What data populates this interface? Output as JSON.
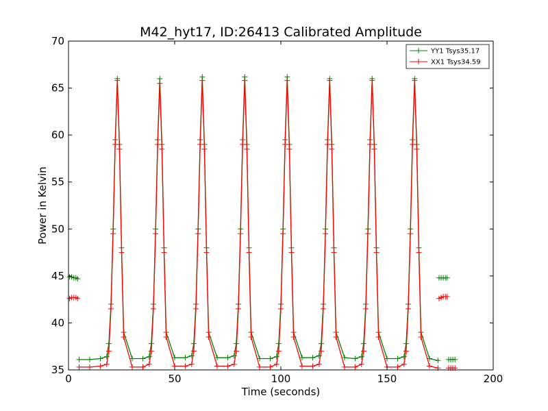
{
  "chart_data": {
    "type": "line",
    "title": "M42_hyt17, ID:26413 Calibrated Amplitude",
    "xlabel": "Time (seconds)",
    "ylabel": "Power in Kelvin",
    "xlim": [
      0,
      200
    ],
    "ylim": [
      35,
      70
    ],
    "xticks": [
      "0",
      "50",
      "100",
      "150",
      "200"
    ],
    "yticks": [
      "35",
      "40",
      "45",
      "50",
      "55",
      "60",
      "65",
      "70"
    ],
    "grid": false,
    "legend_position": "top-right",
    "marker": "plus",
    "series": [
      {
        "name": "YY1 Tsys35.17",
        "color": "#008000",
        "segments": [
          {
            "x": [
              0.5,
              1.5,
              2.5,
              3.5,
              4.3
            ],
            "y": [
              44.9,
              44.9,
              44.8,
              44.8,
              44.7
            ]
          },
          {
            "x": [
              5,
              10,
              15,
              18,
              19,
              20,
              21,
              22,
              23,
              24,
              25,
              26,
              30,
              35,
              38,
              39,
              40,
              41,
              42,
              43,
              44,
              45,
              46,
              50,
              55,
              58,
              59,
              60,
              61,
              62,
              63,
              64,
              65,
              66,
              70,
              75,
              78,
              79,
              80,
              81,
              82,
              83,
              84,
              85,
              86,
              90,
              95,
              98,
              99,
              100,
              101,
              102,
              103,
              104,
              105,
              106,
              110,
              115,
              118,
              119,
              120,
              121,
              122,
              123,
              124,
              125,
              126,
              130,
              135,
              138,
              139,
              140,
              141,
              142,
              143,
              144,
              145,
              146,
              150,
              155,
              158,
              159,
              160,
              161,
              162,
              163,
              164,
              165,
              166,
              170,
              174
            ],
            "y": [
              36.1,
              36.1,
              36.2,
              36.4,
              37.8,
              42.0,
              50.0,
              59.5,
              66.0,
              59.0,
              48.0,
              39.0,
              36.2,
              36.2,
              36.4,
              37.8,
              42.0,
              50.0,
              59.5,
              66.0,
              59.0,
              48.0,
              39.0,
              36.3,
              36.3,
              36.5,
              37.8,
              42.0,
              50.0,
              59.5,
              66.2,
              59.0,
              48.0,
              39.0,
              36.3,
              36.3,
              36.5,
              37.8,
              42.0,
              50.0,
              59.5,
              66.2,
              59.0,
              48.0,
              39.0,
              36.2,
              36.2,
              36.4,
              37.8,
              42.0,
              50.0,
              59.5,
              66.2,
              59.0,
              48.0,
              39.0,
              36.3,
              36.3,
              36.5,
              37.8,
              42.0,
              50.0,
              59.5,
              66.0,
              59.0,
              48.0,
              39.0,
              36.3,
              36.2,
              36.4,
              37.8,
              42.0,
              50.0,
              59.5,
              66.0,
              59.0,
              48.0,
              39.0,
              36.2,
              36.2,
              36.4,
              37.8,
              42.0,
              50.0,
              59.5,
              66.0,
              59.0,
              48.0,
              39.0,
              36.2,
              36.0
            ]
          },
          {
            "x": [
              174.5,
              175.5,
              176.5,
              177.5,
              178.3
            ],
            "y": [
              44.8,
              44.8,
              44.8,
              44.8,
              44.8
            ]
          },
          {
            "x": [
              179,
              180,
              181,
              182
            ],
            "y": [
              36.1,
              36.1,
              36.1,
              36.1
            ]
          }
        ]
      },
      {
        "name": "XX1 Tsys34.59",
        "color": "#ff0000",
        "segments": [
          {
            "x": [
              0.5,
              1.5,
              2.5,
              3.5,
              4.3
            ],
            "y": [
              42.6,
              42.7,
              42.7,
              42.7,
              42.6
            ]
          },
          {
            "x": [
              5,
              10,
              15,
              18,
              19,
              20,
              21,
              22,
              23,
              24,
              25,
              26,
              30,
              35,
              38,
              39,
              40,
              41,
              42,
              43,
              44,
              45,
              46,
              50,
              55,
              58,
              59,
              60,
              61,
              62,
              63,
              64,
              65,
              66,
              70,
              75,
              78,
              79,
              80,
              81,
              82,
              83,
              84,
              85,
              86,
              90,
              95,
              98,
              99,
              100,
              101,
              102,
              103,
              104,
              105,
              106,
              110,
              115,
              118,
              119,
              120,
              121,
              122,
              123,
              124,
              125,
              126,
              130,
              135,
              138,
              139,
              140,
              141,
              142,
              143,
              144,
              145,
              146,
              150,
              155,
              158,
              159,
              160,
              161,
              162,
              163,
              164,
              165,
              166,
              170,
              174
            ],
            "y": [
              35.3,
              35.3,
              35.4,
              35.6,
              37.0,
              41.5,
              49.5,
              59.0,
              65.8,
              58.5,
              47.5,
              38.5,
              35.3,
              35.3,
              35.6,
              37.0,
              41.5,
              49.5,
              59.0,
              65.5,
              58.5,
              47.5,
              38.5,
              35.4,
              35.4,
              35.6,
              37.0,
              41.5,
              49.5,
              59.0,
              65.8,
              58.5,
              47.5,
              38.5,
              35.4,
              35.4,
              35.6,
              37.0,
              41.5,
              49.5,
              59.0,
              65.8,
              58.5,
              47.5,
              38.5,
              35.3,
              35.3,
              35.6,
              37.0,
              41.5,
              49.5,
              59.0,
              65.8,
              58.5,
              47.5,
              38.5,
              35.4,
              35.4,
              35.6,
              37.0,
              41.5,
              49.5,
              59.0,
              65.8,
              58.5,
              47.5,
              38.5,
              35.3,
              35.3,
              35.6,
              37.0,
              41.5,
              49.5,
              59.0,
              65.8,
              58.5,
              47.5,
              38.5,
              35.3,
              35.3,
              35.6,
              37.0,
              41.5,
              49.5,
              59.0,
              65.8,
              58.5,
              47.5,
              38.5,
              35.4,
              35.2
            ]
          },
          {
            "x": [
              174.5,
              175.5,
              176.5,
              177.5,
              178.3
            ],
            "y": [
              42.6,
              42.7,
              42.8,
              42.8,
              42.8
            ]
          },
          {
            "x": [
              179,
              180,
              181,
              182
            ],
            "y": [
              35.2,
              35.2,
              35.2,
              35.2
            ]
          }
        ]
      }
    ]
  }
}
